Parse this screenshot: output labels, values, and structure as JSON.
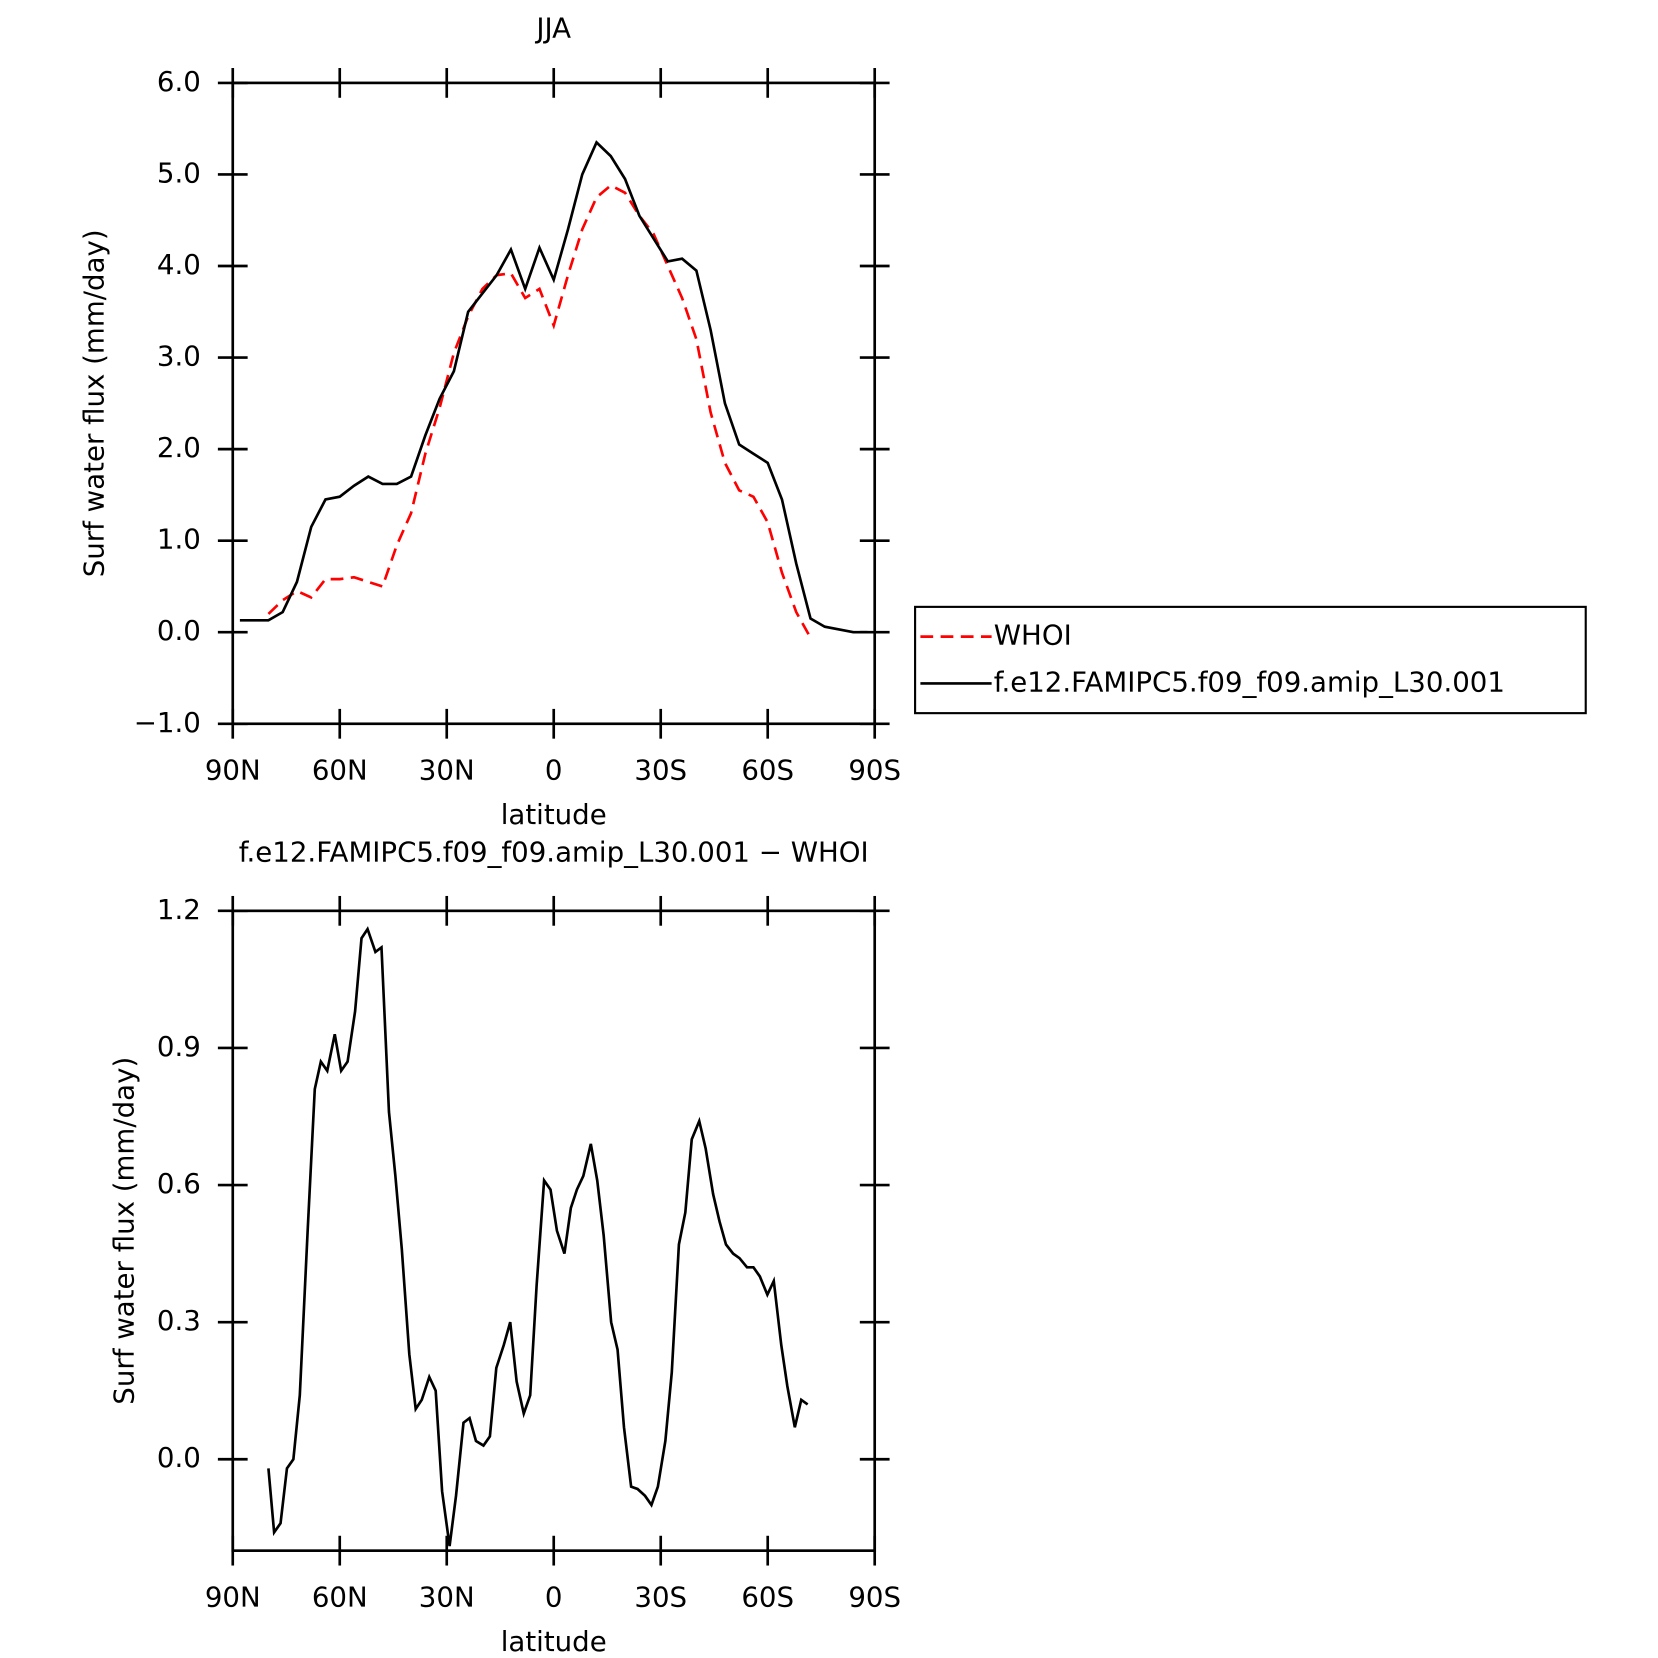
{
  "chart_data": [
    {
      "type": "line",
      "title": "JJA",
      "x_label": "latitude",
      "y_label": "Surf water flux (mm/day)",
      "x": [
        88,
        84,
        80,
        76,
        72,
        68,
        64,
        60,
        56,
        52,
        48,
        44,
        40,
        36,
        32,
        28,
        24,
        20,
        16,
        12,
        8,
        4,
        0,
        -4,
        -8,
        -12,
        -16,
        -20,
        -24,
        -28,
        -32,
        -36,
        -40,
        -44,
        -48,
        -52,
        -56,
        -60,
        -64,
        -68,
        -72,
        -76,
        -80,
        -84,
        -88
      ],
      "series": [
        {
          "name": "WHOI",
          "color": "#ff0000",
          "linestyle": "dashed",
          "values": [
            null,
            null,
            0.2,
            0.35,
            0.45,
            0.38,
            0.58,
            0.58,
            0.6,
            0.55,
            0.5,
            0.95,
            1.3,
            1.95,
            2.45,
            3.05,
            3.45,
            3.75,
            3.9,
            3.92,
            3.65,
            3.75,
            3.35,
            3.9,
            4.4,
            4.75,
            4.88,
            4.8,
            4.55,
            4.35,
            4.0,
            3.65,
            3.2,
            2.4,
            1.85,
            1.55,
            1.48,
            1.2,
            0.65,
            0.22,
            -0.06,
            null,
            null,
            null,
            null
          ]
        },
        {
          "name": "f.e12.FAMIPC5.f09_f09.amip_L30.001",
          "color": "#000000",
          "linestyle": "solid",
          "values": [
            0.13,
            0.13,
            0.13,
            0.22,
            0.55,
            1.15,
            1.45,
            1.48,
            1.6,
            1.7,
            1.62,
            1.62,
            1.7,
            2.15,
            2.55,
            2.85,
            3.5,
            3.7,
            3.9,
            4.18,
            3.75,
            4.2,
            3.85,
            4.4,
            5.0,
            5.35,
            5.2,
            4.95,
            4.55,
            4.3,
            4.05,
            4.08,
            3.95,
            3.3,
            2.5,
            2.05,
            1.95,
            1.85,
            1.45,
            0.75,
            0.15,
            0.06,
            0.03,
            0.0,
            0.0
          ]
        }
      ],
      "xlim": [
        90,
        -90
      ],
      "xticks": [
        {
          "value": 90,
          "label": "90N"
        },
        {
          "value": 60,
          "label": "60N"
        },
        {
          "value": 30,
          "label": "30N"
        },
        0,
        {
          "value": -30,
          "label": "30S"
        },
        {
          "value": -60,
          "label": "60S"
        },
        {
          "value": -90,
          "label": "90S"
        }
      ],
      "ylim": [
        -1,
        6
      ],
      "yticks": [
        {
          "value": -1,
          "label": "−1.0"
        },
        {
          "value": 0,
          "label": "0.0"
        },
        {
          "value": 1,
          "label": "1.0"
        },
        {
          "value": 2,
          "label": "2.0"
        },
        {
          "value": 3,
          "label": "3.0"
        },
        {
          "value": 4,
          "label": "4.0"
        },
        {
          "value": 5,
          "label": "5.0"
        },
        {
          "value": 6,
          "label": "6.0"
        }
      ],
      "legend": "right",
      "grid": false
    },
    {
      "type": "line",
      "title": "f.e12.FAMIPC5.f09_f09.amip_L30.001 − WHOI",
      "x_label": "latitude",
      "y_label": "Surf water flux (mm/day)",
      "x": [
        80,
        78.4,
        76.6,
        74.8,
        73,
        71.2,
        69,
        67,
        65.3,
        63.5,
        61.4,
        59.6,
        57.8,
        55.7,
        53.9,
        52.2,
        50,
        48.3,
        46.2,
        44.4,
        42.6,
        40.5,
        38.7,
        37,
        34.9,
        33.1,
        31.3,
        29.2,
        27.4,
        25.3,
        23.6,
        21.8,
        19.7,
        17.9,
        16.1,
        14,
        12.2,
        10.4,
        8.4,
        6.6,
        4.8,
        2.7,
        0.9,
        -0.9,
        -3,
        -4.8,
        -6.5,
        -8.3,
        -10.4,
        -12.2,
        -14,
        -16.1,
        -17.9,
        -19.7,
        -21.7,
        -23.5,
        -25.6,
        -27.4,
        -29.2,
        -31.3,
        -33.1,
        -35.1,
        -36.9,
        -38.7,
        -40.8,
        -42.6,
        -44.7,
        -46.5,
        -48.3,
        -50.3,
        -52.1,
        -54.2,
        -56,
        -57.8,
        -59.9,
        -61.7,
        -63.8,
        -65.5,
        -67.6,
        -69.4,
        -71.2
      ],
      "values": [
        -0.02,
        -0.16,
        -0.14,
        -0.02,
        0.0,
        0.14,
        0.5,
        0.81,
        0.87,
        0.85,
        0.93,
        0.85,
        0.87,
        0.98,
        1.14,
        1.16,
        1.11,
        1.12,
        0.76,
        0.62,
        0.46,
        0.23,
        0.11,
        0.13,
        0.18,
        0.15,
        -0.07,
        -0.19,
        -0.08,
        0.08,
        0.09,
        0.04,
        0.03,
        0.05,
        0.2,
        0.25,
        0.3,
        0.17,
        0.1,
        0.14,
        0.38,
        0.61,
        0.59,
        0.5,
        0.45,
        0.55,
        0.59,
        0.62,
        0.69,
        0.61,
        0.49,
        0.3,
        0.24,
        0.07,
        -0.06,
        -0.065,
        -0.08,
        -0.1,
        -0.06,
        0.04,
        0.19,
        0.47,
        0.54,
        0.7,
        0.74,
        0.68,
        0.58,
        0.52,
        0.47,
        0.45,
        0.44,
        0.42,
        0.42,
        0.4,
        0.36,
        0.39,
        0.25,
        0.16,
        0.07,
        0.13,
        0.12
      ],
      "color": "#000000",
      "linestyle": "solid",
      "xlim": [
        90,
        -90
      ],
      "xticks": [
        {
          "value": 90,
          "label": "90N"
        },
        {
          "value": 60,
          "label": "60N"
        },
        {
          "value": 30,
          "label": "30N"
        },
        0,
        {
          "value": -30,
          "label": "30S"
        },
        {
          "value": -60,
          "label": "60S"
        },
        {
          "value": -90,
          "label": "90S"
        }
      ],
      "ylim": [
        -0.2,
        1.2
      ],
      "yticks": [
        {
          "value": 0,
          "label": "0.0"
        },
        {
          "value": 0.3,
          "label": "0.3"
        },
        {
          "value": 0.6,
          "label": "0.6"
        },
        {
          "value": 0.9,
          "label": "0.9"
        },
        {
          "value": 1.2,
          "label": "1.2"
        }
      ],
      "grid": false
    }
  ]
}
